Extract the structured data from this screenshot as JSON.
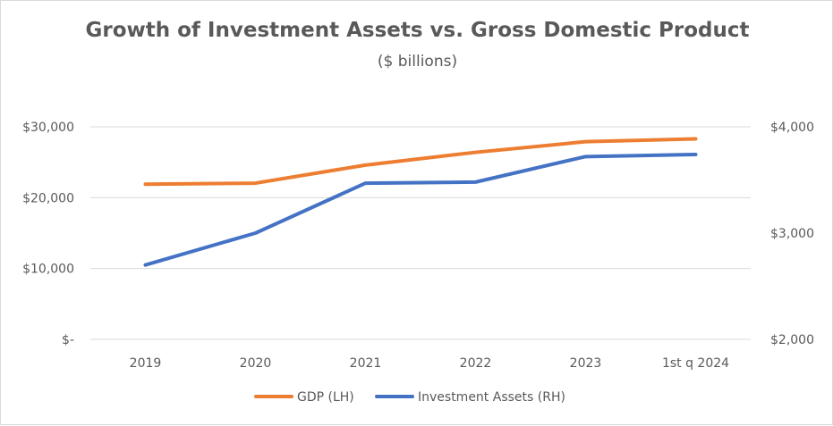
{
  "chart_data": {
    "type": "line",
    "title": "Growth of Investment Assets vs. Gross Domestic Product",
    "subtitle": "($ billions)",
    "categories": [
      "2019",
      "2020",
      "2021",
      "2022",
      "2023",
      "1st q 2024"
    ],
    "left_axis": {
      "ylim": [
        0,
        30000
      ],
      "ticks": [
        0,
        10000,
        20000,
        30000
      ],
      "tick_labels": [
        "$-",
        "$10,000",
        "$20,000",
        "$30,000"
      ]
    },
    "right_axis": {
      "ylim": [
        2000,
        4000
      ],
      "ticks": [
        2000,
        3000,
        4000
      ],
      "tick_labels": [
        "$2,000",
        "$3,000",
        "$4,000"
      ]
    },
    "series": [
      {
        "name": "GDP (LH)",
        "axis": "left",
        "color": "#ed7d31",
        "values": [
          21900,
          22050,
          24600,
          26400,
          27900,
          28300
        ]
      },
      {
        "name": "Investment Assets (RH)",
        "axis": "right",
        "color": "#4472c4",
        "values": [
          2700,
          3000,
          3470,
          3480,
          3720,
          3740
        ]
      }
    ],
    "grid": true,
    "legend_position": "bottom"
  }
}
